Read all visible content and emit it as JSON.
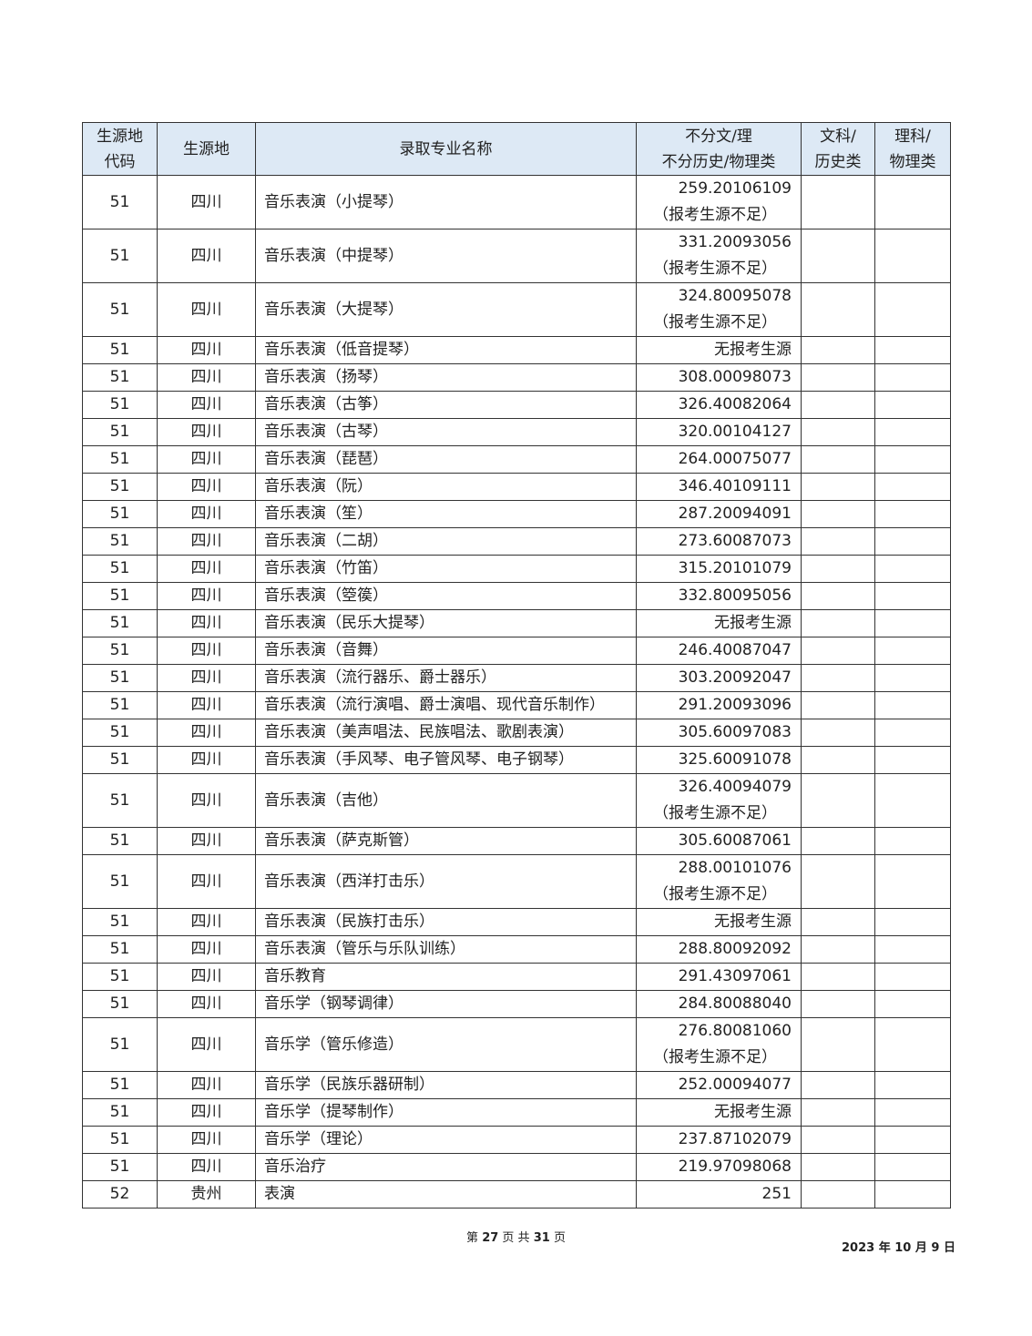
{
  "header": {
    "code": "生源地代码",
    "region": "生源地",
    "major": "录取专业名称",
    "col_all": "不分文/理\n不分历史/物理类",
    "col_arts": "文科/\n历史类",
    "col_sci": "理科/\n物理类"
  },
  "rows": [
    {
      "code": "51",
      "region": "四川",
      "major": "音乐表演（小提琴）",
      "score": "259.20106109",
      "note": "（报考生源不足）"
    },
    {
      "code": "51",
      "region": "四川",
      "major": "音乐表演（中提琴）",
      "score": "331.20093056",
      "note": "（报考生源不足）"
    },
    {
      "code": "51",
      "region": "四川",
      "major": "音乐表演（大提琴）",
      "score": "324.80095078",
      "note": "（报考生源不足）"
    },
    {
      "code": "51",
      "region": "四川",
      "major": "音乐表演（低音提琴）",
      "score": "无报考生源"
    },
    {
      "code": "51",
      "region": "四川",
      "major": "音乐表演（扬琴）",
      "score": "308.00098073"
    },
    {
      "code": "51",
      "region": "四川",
      "major": "音乐表演（古筝）",
      "score": "326.40082064"
    },
    {
      "code": "51",
      "region": "四川",
      "major": "音乐表演（古琴）",
      "score": "320.00104127"
    },
    {
      "code": "51",
      "region": "四川",
      "major": "音乐表演（琵琶）",
      "score": "264.00075077"
    },
    {
      "code": "51",
      "region": "四川",
      "major": "音乐表演（阮）",
      "score": "346.40109111"
    },
    {
      "code": "51",
      "region": "四川",
      "major": "音乐表演（笙）",
      "score": "287.20094091"
    },
    {
      "code": "51",
      "region": "四川",
      "major": "音乐表演（二胡）",
      "score": "273.60087073"
    },
    {
      "code": "51",
      "region": "四川",
      "major": "音乐表演（竹笛）",
      "score": "315.20101079"
    },
    {
      "code": "51",
      "region": "四川",
      "major": "音乐表演（箜篌）",
      "score": "332.80095056"
    },
    {
      "code": "51",
      "region": "四川",
      "major": "音乐表演（民乐大提琴）",
      "score": "无报考生源"
    },
    {
      "code": "51",
      "region": "四川",
      "major": "音乐表演（音舞）",
      "score": "246.40087047"
    },
    {
      "code": "51",
      "region": "四川",
      "major": "音乐表演（流行器乐、爵士器乐）",
      "score": "303.20092047"
    },
    {
      "code": "51",
      "region": "四川",
      "major": "音乐表演（流行演唱、爵士演唱、现代音乐制作）",
      "score": "291.20093096"
    },
    {
      "code": "51",
      "region": "四川",
      "major": "音乐表演（美声唱法、民族唱法、歌剧表演）",
      "score": "305.60097083"
    },
    {
      "code": "51",
      "region": "四川",
      "major": "音乐表演（手风琴、电子管风琴、电子钢琴）",
      "score": "325.60091078"
    },
    {
      "code": "51",
      "region": "四川",
      "major": "音乐表演（吉他）",
      "score": "326.40094079",
      "note": "（报考生源不足）"
    },
    {
      "code": "51",
      "region": "四川",
      "major": "音乐表演（萨克斯管）",
      "score": "305.60087061"
    },
    {
      "code": "51",
      "region": "四川",
      "major": "音乐表演（西洋打击乐）",
      "score": "288.00101076",
      "note": "（报考生源不足）"
    },
    {
      "code": "51",
      "region": "四川",
      "major": "音乐表演（民族打击乐）",
      "score": "无报考生源"
    },
    {
      "code": "51",
      "region": "四川",
      "major": "音乐表演（管乐与乐队训练）",
      "score": "288.80092092"
    },
    {
      "code": "51",
      "region": "四川",
      "major": "音乐教育",
      "score": "291.43097061"
    },
    {
      "code": "51",
      "region": "四川",
      "major": "音乐学（钢琴调律）",
      "score": "284.80088040"
    },
    {
      "code": "51",
      "region": "四川",
      "major": "音乐学（管乐修造）",
      "score": "276.80081060",
      "note": "（报考生源不足）"
    },
    {
      "code": "51",
      "region": "四川",
      "major": "音乐学（民族乐器研制）",
      "score": "252.00094077"
    },
    {
      "code": "51",
      "region": "四川",
      "major": "音乐学（提琴制作）",
      "score": "无报考生源"
    },
    {
      "code": "51",
      "region": "四川",
      "major": "音乐学（理论）",
      "score": "237.87102079"
    },
    {
      "code": "51",
      "region": "四川",
      "major": "音乐治疗",
      "score": "219.97098068"
    },
    {
      "code": "52",
      "region": "贵州",
      "major": "表演",
      "score": "251"
    }
  ],
  "footer": {
    "page_prefix": "第",
    "page": "27",
    "page_mid": "页 共",
    "total": "31",
    "page_suffix": "页",
    "date": "2023 年 10 月 9 日"
  },
  "colors": {
    "header_bg": "#dde9f5"
  }
}
